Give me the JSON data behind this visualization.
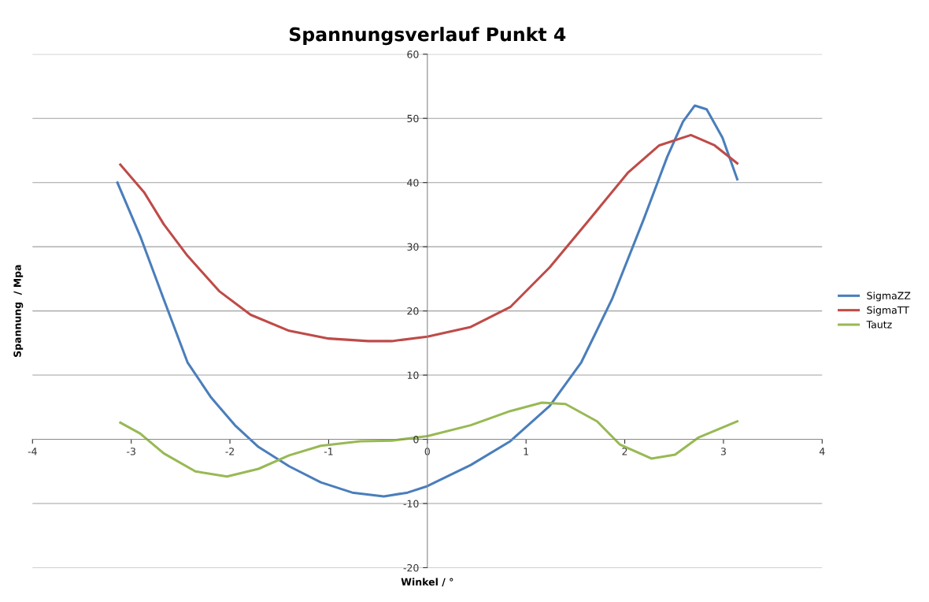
{
  "chart_data": {
    "type": "line",
    "title": "Spannungsverlauf Punkt 4",
    "xlabel": "Winkel / °",
    "ylabel": "Spannung  / Mpa",
    "xlim": [
      -4,
      4
    ],
    "xticks": [
      -4,
      -3,
      -2,
      -1,
      0,
      1,
      2,
      3,
      4
    ],
    "ylim": [
      -20,
      60
    ],
    "yticks": [
      -20,
      -10,
      0,
      10,
      20,
      30,
      40,
      50,
      60
    ],
    "grid": "y",
    "legend": "right",
    "marker": "none",
    "line_style": "solid",
    "series": [
      {
        "name": "SigmaZZ",
        "color": "#4a7ebb",
        "x": [
          -3.14,
          -2.91,
          -2.67,
          -2.43,
          -2.19,
          -1.95,
          -1.71,
          -1.4,
          -1.08,
          -0.76,
          -0.44,
          -0.2,
          0,
          0.44,
          0.84,
          1.24,
          1.56,
          1.87,
          2.19,
          2.43,
          2.59,
          2.71,
          2.83,
          2.99,
          3.14
        ],
        "values": [
          40,
          31.7,
          21.8,
          12,
          6.5,
          2.2,
          -1.2,
          -4.2,
          -6.7,
          -8.3,
          -8.9,
          -8.3,
          -7.3,
          -4,
          -0.3,
          5.2,
          12,
          21.8,
          34.2,
          44,
          49.5,
          52,
          51.4,
          47,
          40.5
        ]
      },
      {
        "name": "SigmaTT",
        "color": "#be4b48",
        "x": [
          -3.11,
          -2.87,
          -2.67,
          -2.43,
          -2.11,
          -1.79,
          -1.4,
          -1.0,
          -0.6,
          -0.36,
          0,
          0.44,
          0.84,
          1.24,
          1.64,
          2.03,
          2.35,
          2.67,
          2.91,
          3.14
        ],
        "values": [
          42.8,
          38.5,
          33.5,
          28.6,
          23.1,
          19.4,
          16.9,
          15.7,
          15.3,
          15.3,
          16,
          17.5,
          20.6,
          26.8,
          34.2,
          41.5,
          45.8,
          47.4,
          45.8,
          43
        ]
      },
      {
        "name": "Tautz",
        "color": "#98b954",
        "x": [
          -3.11,
          -2.91,
          -2.67,
          -2.35,
          -2.03,
          -1.71,
          -1.4,
          -1.08,
          -0.68,
          -0.36,
          0,
          0.44,
          0.84,
          1.16,
          1.4,
          1.72,
          1.95,
          2.27,
          2.51,
          2.75,
          3.14
        ],
        "values": [
          2.6,
          0.9,
          -2.2,
          -5,
          -5.8,
          -4.6,
          -2.5,
          -1,
          -0.3,
          -0.2,
          0.5,
          2.2,
          4.4,
          5.7,
          5.5,
          2.8,
          -0.8,
          -3,
          -2.4,
          0.3,
          2.8
        ]
      }
    ]
  }
}
